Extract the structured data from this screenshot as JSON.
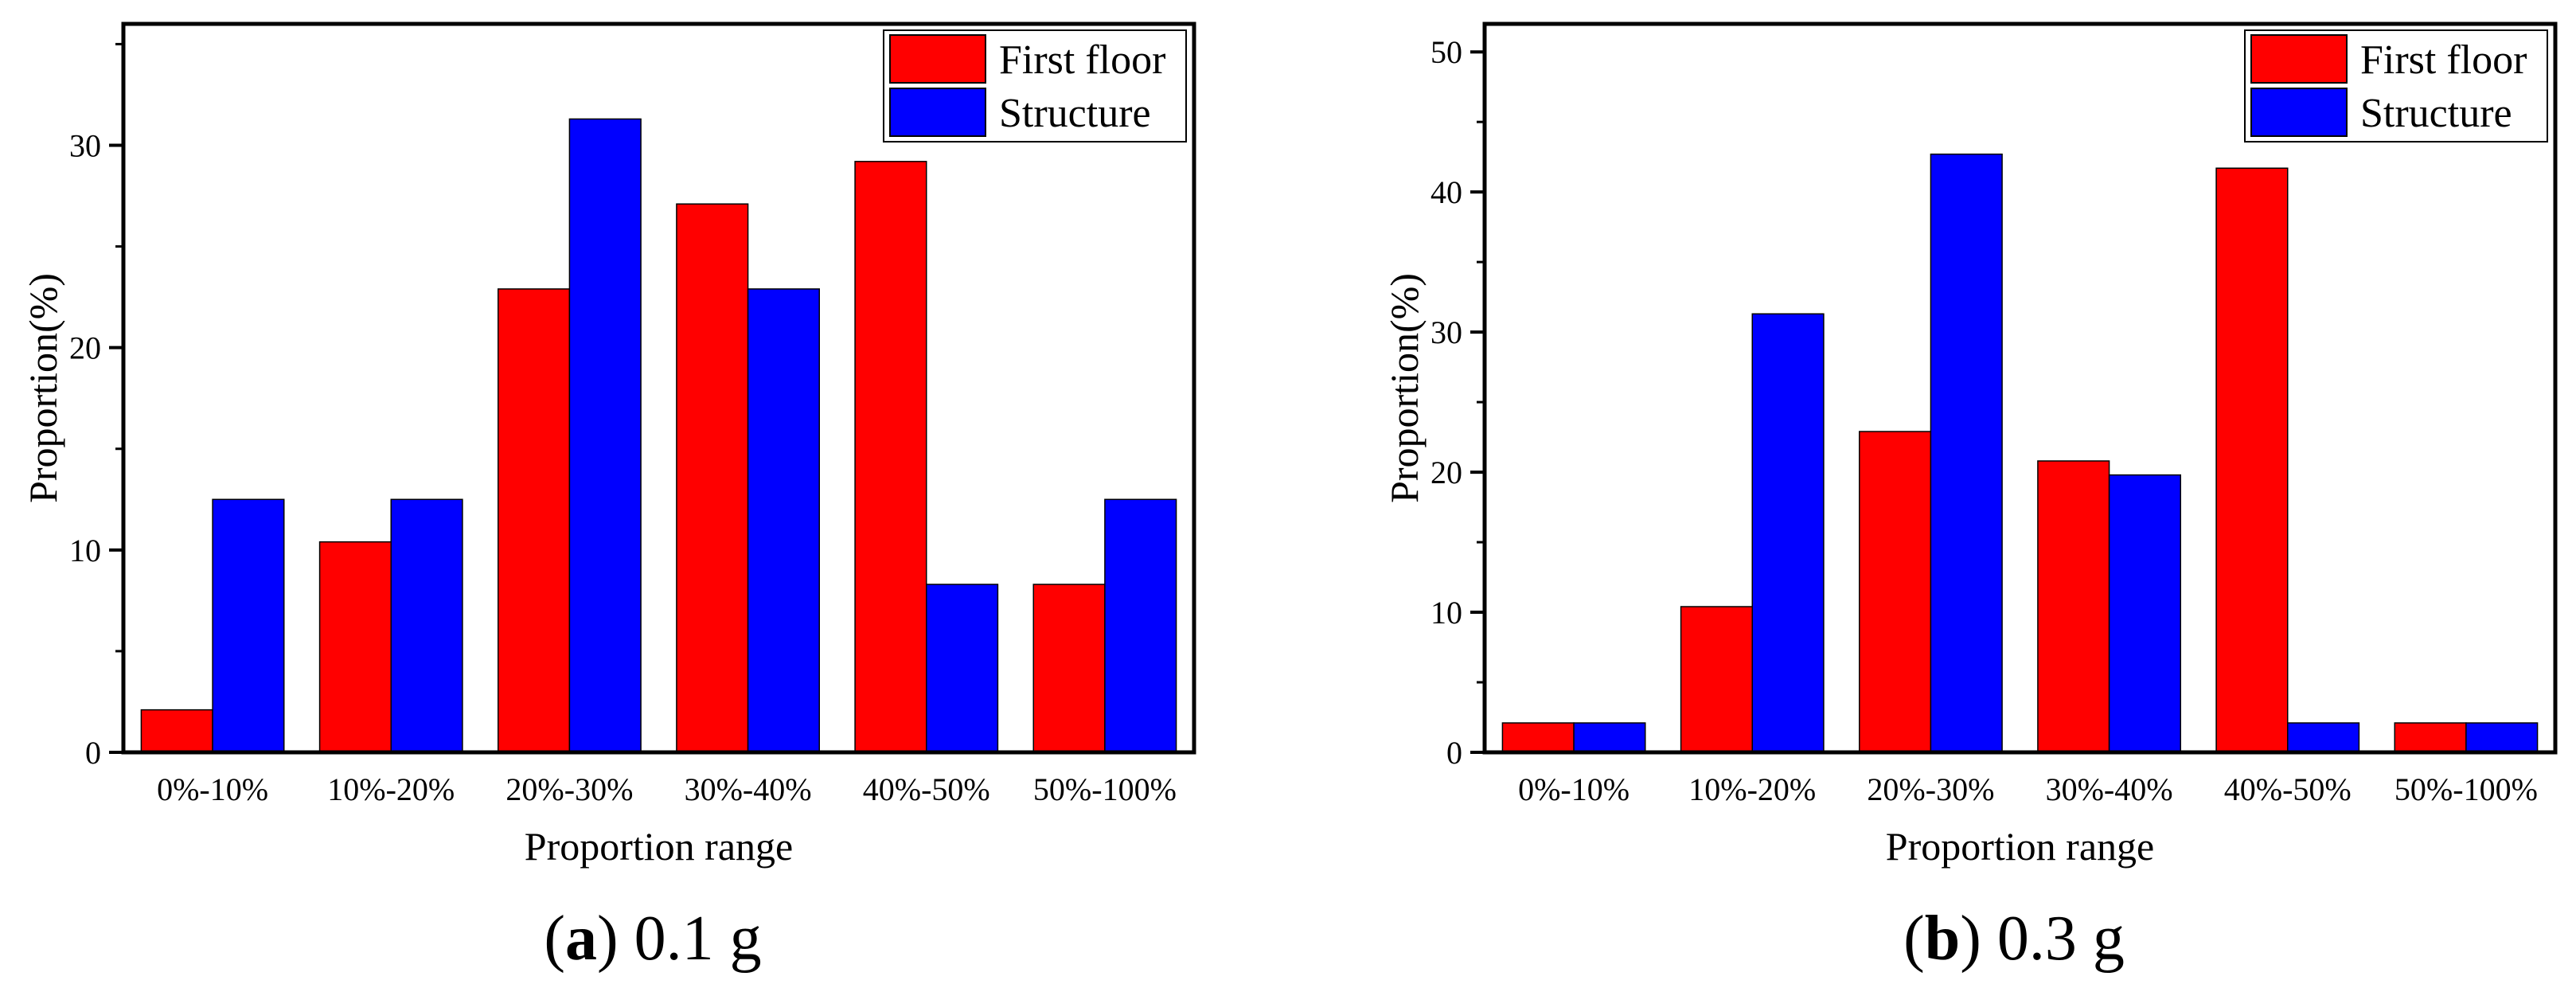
{
  "chart_data": [
    {
      "type": "bar",
      "panel_label": "a",
      "panel_title": "0.1 g",
      "categories": [
        "0%-10%",
        "10%-20%",
        "20%-30%",
        "30%-40%",
        "40%-50%",
        "50%-100%"
      ],
      "series": [
        {
          "name": "First floor",
          "color": "#ff0000",
          "values": [
            2.1,
            10.4,
            22.9,
            27.1,
            29.2,
            8.3
          ]
        },
        {
          "name": "Structure",
          "color": "#0000ff",
          "values": [
            12.5,
            12.5,
            31.3,
            22.9,
            8.3,
            12.5
          ]
        }
      ],
      "xlabel": "Proportion range",
      "ylabel": "Proportion(%)",
      "ylim": [
        0,
        36
      ],
      "yticks": [
        0,
        10,
        20,
        30
      ],
      "legend_position": "top-right"
    },
    {
      "type": "bar",
      "panel_label": "b",
      "panel_title": "0.3 g",
      "categories": [
        "0%-10%",
        "10%-20%",
        "20%-30%",
        "30%-40%",
        "40%-50%",
        "50%-100%"
      ],
      "series": [
        {
          "name": "First floor",
          "color": "#ff0000",
          "values": [
            2.1,
            10.4,
            22.9,
            20.8,
            41.7,
            2.1
          ]
        },
        {
          "name": "Structure",
          "color": "#0000ff",
          "values": [
            2.1,
            31.3,
            42.7,
            19.8,
            2.1,
            2.1
          ]
        }
      ],
      "xlabel": "Proportion range",
      "ylabel": "Proportion(%)",
      "ylim": [
        0,
        52
      ],
      "yticks": [
        0,
        10,
        20,
        30,
        40,
        50
      ],
      "legend_position": "top-right"
    }
  ]
}
